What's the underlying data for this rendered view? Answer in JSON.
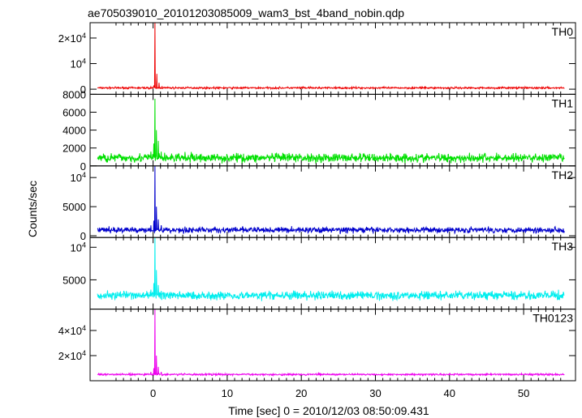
{
  "chart_data": {
    "type": "line",
    "title": "ae705039010_20101203085009_wam3_bst_4band_nobin.qdp",
    "xlabel": "Time [sec] 0 = 2010/12/03 08:50:09.431",
    "ylabel": "Counts/sec",
    "xlim": [
      -8.5,
      57
    ],
    "xticks": [
      {
        "value": 0,
        "label": "0"
      },
      {
        "value": 10,
        "label": "10"
      },
      {
        "value": 20,
        "label": "20"
      },
      {
        "value": 30,
        "label": "30"
      },
      {
        "value": 40,
        "label": "40"
      },
      {
        "value": 50,
        "label": "50"
      }
    ],
    "grid": false,
    "panels": [
      {
        "name": "TH0",
        "color": "#ee0000",
        "ylim": [
          -2000,
          26000
        ],
        "yticks": [
          {
            "value": 0,
            "label": "0"
          },
          {
            "value": 10000,
            "label": "10^4"
          },
          {
            "value": 20000,
            "label": "2×10^4"
          }
        ],
        "baseline": 500,
        "noise": 250,
        "events": [
          [
            -0.3,
            900
          ],
          [
            0.1,
            1500
          ],
          [
            0.25,
            26000
          ],
          [
            0.5,
            6000
          ],
          [
            0.8,
            2500
          ],
          [
            1.2,
            1200
          ]
        ]
      },
      {
        "name": "TH1",
        "color": "#00e000",
        "ylim": [
          0,
          8000
        ],
        "yticks": [
          {
            "value": 0,
            "label": "0"
          },
          {
            "value": 2000,
            "label": "2000"
          },
          {
            "value": 4000,
            "label": "4000"
          },
          {
            "value": 6000,
            "label": "6000"
          },
          {
            "value": 8000,
            "label": "8000"
          }
        ],
        "baseline": 900,
        "noise": 350,
        "events": [
          [
            -0.3,
            1600
          ],
          [
            0.1,
            2500
          ],
          [
            0.25,
            7500
          ],
          [
            0.45,
            4000
          ],
          [
            0.7,
            2800
          ],
          [
            1.1,
            1600
          ]
        ]
      },
      {
        "name": "TH2",
        "color": "#0000cc",
        "ylim": [
          -300,
          12000
        ],
        "yticks": [
          {
            "value": 0,
            "label": "0"
          },
          {
            "value": 5000,
            "label": "5000"
          },
          {
            "value": 10000,
            "label": "10^4"
          }
        ],
        "baseline": 1000,
        "noise": 350,
        "events": [
          [
            -0.3,
            1800
          ],
          [
            0.1,
            2600
          ],
          [
            0.25,
            12000
          ],
          [
            0.45,
            5000
          ],
          [
            0.7,
            2800
          ],
          [
            1.1,
            1800
          ]
        ]
      },
      {
        "name": "TH3",
        "color": "#00eeee",
        "ylim": [
          500,
          11500
        ],
        "yticks": [
          {
            "value": 5000,
            "label": "5000"
          },
          {
            "value": 10000,
            "label": "10^4"
          }
        ],
        "baseline": 2600,
        "noise": 450,
        "events": [
          [
            -0.3,
            3500
          ],
          [
            0.1,
            4500
          ],
          [
            0.25,
            11500
          ],
          [
            0.45,
            6500
          ],
          [
            0.7,
            4200
          ],
          [
            1.1,
            3300
          ]
        ]
      },
      {
        "name": "TH0123",
        "color": "#ee00ee",
        "ylim": [
          0,
          57000
        ],
        "yticks": [
          {
            "value": 20000,
            "label": "2×10^4"
          },
          {
            "value": 40000,
            "label": "4×10^4"
          }
        ],
        "baseline": 5000,
        "noise": 500,
        "events": [
          [
            -0.3,
            7000
          ],
          [
            0.1,
            10000
          ],
          [
            0.25,
            57000
          ],
          [
            0.45,
            20000
          ],
          [
            0.7,
            11000
          ],
          [
            1.1,
            7000
          ]
        ]
      }
    ],
    "series_end": 55.5,
    "series_start": -7.5
  }
}
